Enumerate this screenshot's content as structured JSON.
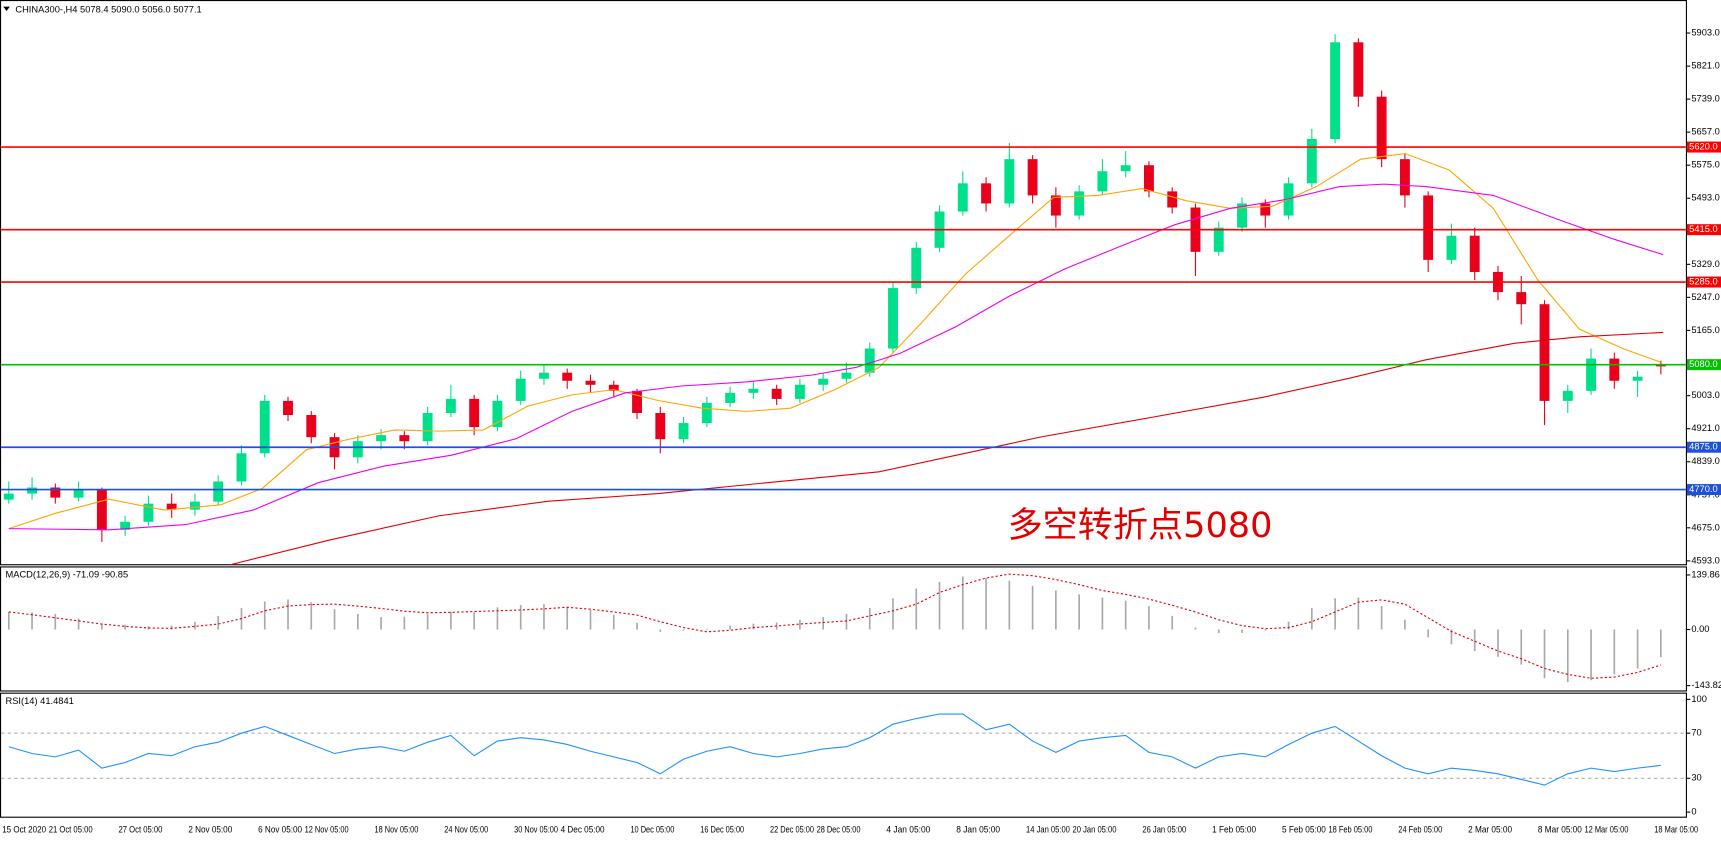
{
  "chart_data": [
    {
      "type": "candlestick",
      "title": "CHINA300-,H4  5078.4 5090.0 5056.0 5077.1",
      "categories": [
        "15 Oct 2020",
        null,
        "21 Oct 05:00",
        null,
        null,
        "27 Oct 05:00",
        null,
        null,
        "2 Nov 05:00",
        null,
        null,
        "6 Nov 05:00",
        null,
        "12 Nov 05:00",
        null,
        null,
        "18 Nov 05:00",
        null,
        null,
        "24 Nov 05:00",
        null,
        null,
        "30 Nov 05:00",
        null,
        "4 Dec 05:00",
        null,
        null,
        "10 Dec 05:00",
        null,
        null,
        "16 Dec 05:00",
        null,
        null,
        "22 Dec 05:00",
        null,
        "28 Dec 05:00",
        null,
        null,
        "4 Jan 05:00",
        null,
        null,
        "8 Jan 05:00",
        null,
        null,
        "14 Jan 05:00",
        null,
        "20 Jan 05:00",
        null,
        null,
        "26 Jan 05:00",
        null,
        null,
        "1 Feb 05:00",
        null,
        null,
        "5 Feb 05:00",
        null,
        "18 Feb 05:00",
        null,
        null,
        "24 Feb 05:00",
        null,
        null,
        "2 Mar 05:00",
        null,
        null,
        "8 Mar 05:00",
        null,
        "12 Mar 05:00",
        null,
        null,
        "18 Mar 05:00"
      ],
      "open": [
        4745,
        4760,
        4775,
        4750,
        4770,
        4670,
        4690,
        4735,
        4720,
        4740,
        4790,
        4860,
        4990,
        4955,
        4900,
        4850,
        4890,
        4905,
        4890,
        4960,
        4995,
        4925,
        4990,
        5045,
        5060,
        5040,
        5030,
        5015,
        4960,
        4895,
        4935,
        4985,
        5010,
        5020,
        4995,
        5030,
        5045,
        5060,
        5120,
        5270,
        5370,
        5460,
        5530,
        5480,
        5590,
        5500,
        5450,
        5510,
        5560,
        5575,
        5510,
        5470,
        5360,
        5420,
        5480,
        5450,
        5530,
        5640,
        5880,
        5745,
        5590,
        5500,
        5340,
        5400,
        5310,
        5260,
        5230,
        4990,
        5015,
        5095,
        5040,
        5078.4
      ],
      "high": [
        4790,
        4800,
        4785,
        4790,
        4775,
        4705,
        4755,
        4760,
        4760,
        4805,
        4880,
        5005,
        5000,
        4965,
        4910,
        4905,
        4920,
        4915,
        4975,
        5030,
        5005,
        5005,
        5065,
        5080,
        5070,
        5055,
        5040,
        5020,
        4975,
        4950,
        5000,
        5025,
        5040,
        5030,
        5045,
        5060,
        5085,
        5135,
        5285,
        5385,
        5475,
        5560,
        5545,
        5630,
        5600,
        5520,
        5525,
        5590,
        5610,
        5585,
        5520,
        5480,
        5435,
        5495,
        5490,
        5545,
        5665,
        5900,
        5890,
        5760,
        5605,
        5510,
        5430,
        5420,
        5325,
        5300,
        5240,
        5030,
        5120,
        5110,
        5065,
        5090
      ],
      "low": [
        4735,
        4745,
        4735,
        4740,
        4640,
        4655,
        4680,
        4700,
        4705,
        4730,
        4780,
        4850,
        4940,
        4885,
        4820,
        4835,
        4870,
        4870,
        4880,
        4950,
        4905,
        4915,
        4980,
        5030,
        5020,
        5010,
        5000,
        4945,
        4860,
        4885,
        4925,
        4975,
        4995,
        4980,
        4985,
        5015,
        5035,
        5050,
        5110,
        5255,
        5360,
        5450,
        5460,
        5470,
        5480,
        5420,
        5440,
        5500,
        5545,
        5495,
        5455,
        5300,
        5350,
        5410,
        5420,
        5440,
        5520,
        5630,
        5720,
        5570,
        5470,
        5310,
        5330,
        5290,
        5240,
        5180,
        4930,
        4960,
        5005,
        5020,
        5000,
        5056
      ],
      "close": [
        4760,
        4775,
        4750,
        4770,
        4670,
        4690,
        4735,
        4720,
        4740,
        4790,
        4860,
        4990,
        4955,
        4900,
        4850,
        4890,
        4905,
        4890,
        4960,
        4995,
        4925,
        4990,
        5045,
        5060,
        5040,
        5030,
        5015,
        4960,
        4895,
        4935,
        4985,
        5010,
        5020,
        4995,
        5030,
        5045,
        5060,
        5120,
        5270,
        5370,
        5460,
        5530,
        5480,
        5590,
        5500,
        5450,
        5510,
        5560,
        5575,
        5510,
        5470,
        5360,
        5420,
        5480,
        5450,
        5530,
        5640,
        5880,
        5745,
        5590,
        5500,
        5340,
        5400,
        5310,
        5260,
        5230,
        4990,
        5015,
        5095,
        5040,
        5050,
        5077.1
      ],
      "up_color": "#00e08a",
      "down_color": "#e8001c",
      "ylim": [
        4582,
        5985
      ],
      "yticks": [
        {
          "value": 5903,
          "label": "5903.0"
        },
        {
          "value": 5821,
          "label": "5821.0"
        },
        {
          "value": 5739,
          "label": "5739.0"
        },
        {
          "value": 5657,
          "label": "5657.0"
        },
        {
          "value": 5575,
          "label": "5575.0"
        },
        {
          "value": 5493,
          "label": "5493.0"
        },
        {
          "value": 5329,
          "label": "5329.0"
        },
        {
          "value": 5247,
          "label": "5247.0"
        },
        {
          "value": 5165,
          "label": "5165.0"
        },
        {
          "value": 5003,
          "label": "5003.0"
        },
        {
          "value": 4921,
          "label": "4921.0"
        },
        {
          "value": 4839,
          "label": "4839.0"
        },
        {
          "value": 4757,
          "label": "4757.0"
        },
        {
          "value": 4675,
          "label": "4675.0"
        },
        {
          "value": 4593,
          "label": "4593.0"
        }
      ],
      "moving_averages": [
        {
          "color": "#ffa500",
          "x": [
            0,
            2,
            4.3,
            6.7,
            9.1,
            10.9,
            12.8,
            14.7,
            16.6,
            18.5,
            20.4,
            22.3,
            24.2,
            26,
            27.9,
            29.8,
            31.7,
            33.6,
            35.5,
            37.4,
            39.2,
            41.1,
            43,
            44.9,
            46.8,
            48.7,
            50.6,
            52.5,
            54.3,
            56.2,
            58.1,
            60,
            61.9,
            63.8,
            65.7,
            67.5,
            69.4,
            71
          ],
          "values": [
            4673,
            4711,
            4746,
            4719,
            4732,
            4773,
            4869,
            4896,
            4918,
            4915,
            4918,
            4977,
            5005,
            5018,
            4991,
            4972,
            4964,
            4972,
            5018,
            5073,
            5182,
            5304,
            5400,
            5495,
            5500,
            5517,
            5487,
            5468,
            5473,
            5522,
            5590,
            5604,
            5563,
            5468,
            5291,
            5168,
            5119,
            5086
          ]
        },
        {
          "color": "#ee00ee",
          "x": [
            0,
            4.3,
            7.6,
            10.5,
            13.3,
            16.1,
            19,
            21.8,
            24.2,
            26.5,
            28.9,
            31.7,
            34.5,
            36.4,
            38.3,
            40.7,
            43,
            45.4,
            47.7,
            50.1,
            52.5,
            54.8,
            57.2,
            59.1,
            60.9,
            63.8,
            66.6,
            69,
            71.1
          ],
          "values": [
            4673,
            4670,
            4683,
            4719,
            4787,
            4828,
            4855,
            4896,
            4964,
            5010,
            5027,
            5037,
            5054,
            5073,
            5108,
            5174,
            5250,
            5318,
            5372,
            5427,
            5468,
            5489,
            5522,
            5528,
            5522,
            5500,
            5440,
            5391,
            5353
          ]
        },
        {
          "color": "#e00000",
          "x": [
            9.5,
            13.8,
            18.5,
            23.2,
            27.9,
            32.6,
            37.4,
            40.7,
            44.4,
            49.2,
            53.9,
            57.6,
            60.9,
            64.7,
            67.5,
            71.1
          ],
          "values": [
            4583,
            4645,
            4705,
            4741,
            4760,
            4787,
            4814,
            4855,
            4901,
            4950,
            4999,
            5046,
            5092,
            5133,
            5149,
            5160
          ]
        }
      ],
      "levels": [
        {
          "value": 5620,
          "label": "5620.0",
          "color": "#ff0000"
        },
        {
          "value": 5415,
          "label": "5415.0",
          "color": "#ff0000"
        },
        {
          "value": 5285,
          "label": "5285.0",
          "color": "#ff0000"
        },
        {
          "value": 5080,
          "label": "5080.0",
          "color": "#00c000"
        },
        {
          "value": 4875,
          "label": "4875.0",
          "color": "#1e50e0"
        },
        {
          "value": 4770,
          "label": "4770.0",
          "color": "#1e50e0"
        }
      ],
      "annotation": "多空转折点5080"
    },
    {
      "type": "macd",
      "title": "MACD(12,26,9) -71.09 -90.85",
      "histogram": [
        45,
        44,
        40,
        28,
        15,
        12,
        8,
        10,
        20,
        35,
        55,
        72,
        77,
        70,
        52,
        40,
        32,
        33,
        40,
        45,
        44,
        57,
        63,
        65,
        58,
        50,
        38,
        17,
        -6,
        -3,
        2,
        10,
        15,
        18,
        25,
        32,
        40,
        55,
        80,
        105,
        122,
        136,
        132,
        125,
        112,
        100,
        90,
        82,
        74,
        60,
        35,
        5,
        -9,
        -9,
        -3,
        20,
        55,
        80,
        82,
        60,
        25,
        -20,
        -38,
        -55,
        -70,
        -90,
        -125,
        -135,
        -130,
        -115,
        -100,
        -71.09
      ],
      "signal": [
        45,
        38,
        30,
        22,
        14,
        8,
        4,
        3,
        8,
        14,
        28,
        48,
        60,
        64,
        65,
        60,
        54,
        47,
        43,
        44,
        46,
        48,
        50,
        53,
        57,
        52,
        45,
        37,
        20,
        5,
        -6,
        -2,
        5,
        9,
        14,
        18,
        22,
        35,
        48,
        65,
        95,
        115,
        132,
        142,
        138,
        128,
        115,
        100,
        90,
        78,
        62,
        45,
        25,
        10,
        2,
        5,
        20,
        45,
        70,
        76,
        65,
        30,
        -5,
        -30,
        -55,
        -75,
        -100,
        -115,
        -125,
        -122,
        -110,
        -90.85
      ],
      "histogram_color": "#a8a8a8",
      "signal_color": "#e00000",
      "ylim": [
        -159,
        159
      ],
      "yticks": [
        139.86,
        {
          "value": 0,
          "label": "0.00"
        },
        -143.82
      ]
    },
    {
      "type": "line",
      "title": "RSI(14) 41.4841",
      "values": [
        58,
        52,
        49,
        55,
        39,
        44,
        52,
        50,
        58,
        62,
        70,
        76,
        68,
        60,
        52,
        56,
        58,
        54,
        62,
        68,
        50,
        63,
        66,
        64,
        60,
        54,
        49,
        44,
        34,
        47,
        54,
        58,
        52,
        49,
        52,
        56,
        58,
        66,
        78,
        83,
        87,
        87,
        73,
        78,
        63,
        53,
        63,
        66,
        68,
        53,
        49,
        39,
        49,
        52,
        49,
        60,
        70,
        76,
        63,
        50,
        39,
        34,
        39,
        37,
        34,
        29,
        24,
        34,
        39,
        36,
        39,
        41.4841
      ],
      "color": "#1e90ff",
      "ylim": [
        -5,
        105
      ],
      "yticks": [
        0,
        30,
        70,
        100
      ],
      "levels": [
        30,
        70
      ]
    }
  ]
}
